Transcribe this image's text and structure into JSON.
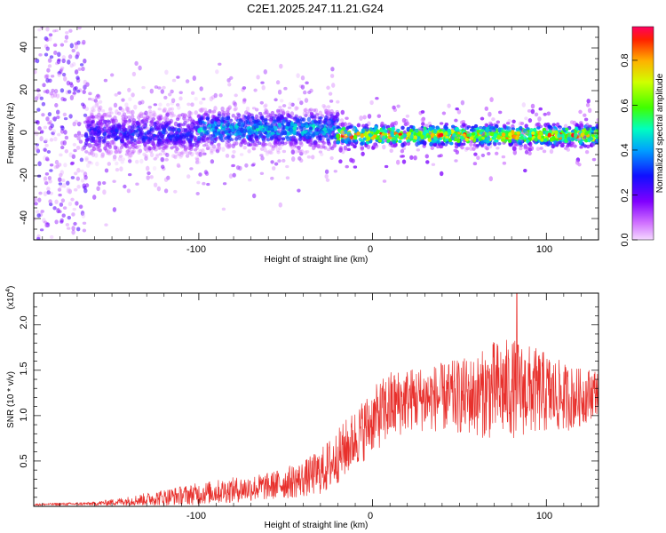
{
  "title": "C2E1.2025.247.11.21.G24",
  "colors": {
    "snr_line": "#e8302c",
    "frame": "#000000",
    "scale": [
      "#ff00ff",
      "#8000ff",
      "#0000ff",
      "#00ffff",
      "#00ff00",
      "#ffff00",
      "#ff8000",
      "#ff0000"
    ]
  },
  "chart_data": [
    {
      "type": "heatmap",
      "name": "spectrogram",
      "xlabel": "Height of straight line (km)",
      "ylabel": "Frequency (Hz)",
      "xlim": [
        -195,
        130
      ],
      "ylim": [
        -50,
        50
      ],
      "xticks": [
        -100,
        0,
        100
      ],
      "xtick_labels": [
        "-100",
        "0",
        "100"
      ],
      "yticks": [
        -40,
        -20,
        0,
        20,
        40
      ],
      "ytick_labels": [
        "-40",
        "-20",
        "0",
        "20",
        "40"
      ],
      "colorbar": {
        "label": "Normalized spectral amplitude",
        "range": [
          0,
          0.95
        ],
        "ticks": [
          0,
          0.2,
          0.4,
          0.6,
          0.8
        ],
        "tick_labels": [
          "0.0",
          "0.2",
          "0.4",
          "0.6",
          "0.8"
        ]
      },
      "bands": [
        {
          "x": [
            -195,
            -165
          ],
          "center_hz": 0,
          "spread_hz": 50,
          "amplitude": 0.1
        },
        {
          "x": [
            -165,
            -100
          ],
          "center_hz": 0,
          "spread_hz": 8,
          "amplitude": 0.3
        },
        {
          "x": [
            -100,
            -20
          ],
          "center_hz": 2,
          "spread_hz": 7,
          "amplitude": 0.45
        },
        {
          "x": [
            -20,
            130
          ],
          "center_hz": -1,
          "spread_hz": 4,
          "amplitude": 0.8
        }
      ]
    },
    {
      "type": "line",
      "name": "snr",
      "xlabel": "Height of straight line (km)",
      "ylabel": "SNR (10 * v/v)",
      "y_multiplier": "(x10",
      "y_multiplier_exp": "4",
      "y_multiplier_close": ")",
      "xlim": [
        -195,
        130
      ],
      "ylim": [
        0,
        2.35
      ],
      "xticks": [
        -100,
        0,
        100
      ],
      "xtick_labels": [
        "-100",
        "0",
        "100"
      ],
      "yticks": [
        0.5,
        1.0,
        1.5,
        2.0
      ],
      "ytick_labels": [
        "0.5",
        "1.0",
        "1.5",
        "2.0"
      ],
      "envelope": {
        "x": [
          -195,
          -160,
          -140,
          -120,
          -100,
          -80,
          -60,
          -40,
          -30,
          -25,
          -20,
          -15,
          -10,
          -5,
          0,
          10,
          20,
          40,
          60,
          70,
          80,
          90,
          100,
          110,
          120,
          130
        ],
        "mid": [
          0.02,
          0.03,
          0.06,
          0.1,
          0.14,
          0.18,
          0.22,
          0.3,
          0.38,
          0.45,
          0.55,
          0.65,
          0.75,
          0.85,
          0.95,
          1.1,
          1.18,
          1.2,
          1.22,
          1.28,
          1.3,
          1.28,
          1.25,
          1.2,
          1.2,
          1.28
        ],
        "amp": [
          0.01,
          0.02,
          0.05,
          0.09,
          0.12,
          0.14,
          0.15,
          0.2,
          0.25,
          0.3,
          0.3,
          0.32,
          0.32,
          0.35,
          0.35,
          0.4,
          0.35,
          0.38,
          0.45,
          0.55,
          0.55,
          0.5,
          0.45,
          0.38,
          0.32,
          0.25
        ]
      },
      "peak": {
        "x": 83,
        "y": 2.35
      }
    }
  ]
}
